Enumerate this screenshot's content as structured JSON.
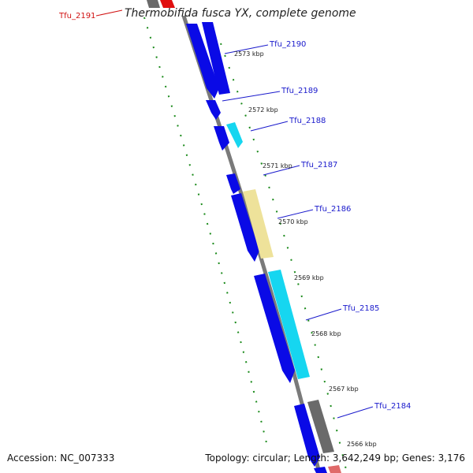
{
  "title": "Thermobifida fusca YX, complete genome",
  "footer": {
    "accession": "Accession: NC_007333",
    "topology": "Topology: circular; Length: 3,642,249 bp; Genes: 3,176"
  },
  "colors": {
    "backbone": "#7a7a7a",
    "gene_blue": "#0a0ae6",
    "gene_cyan": "#16d6f0",
    "gene_yellow": "#eee29a",
    "gene_gray": "#6a6a6a",
    "gene_red": "#e01010",
    "tick_green": "#1a8a1a",
    "label_blue": "#1a1acc",
    "label_red": "#d01010"
  },
  "kbp_ticks": [
    "2573 kbp",
    "2572 kbp",
    "2571 kbp",
    "2570 kbp",
    "2569 kbp",
    "2568 kbp",
    "2567 kbp",
    "2566 kbp"
  ],
  "gene_labels": [
    {
      "text": "Tfu_2191",
      "color": "red"
    },
    {
      "text": "Tfu_2190",
      "color": "blue"
    },
    {
      "text": "Tfu_2189",
      "color": "blue"
    },
    {
      "text": "Tfu_2188",
      "color": "blue"
    },
    {
      "text": "Tfu_2187",
      "color": "blue"
    },
    {
      "text": "Tfu_2186",
      "color": "blue"
    },
    {
      "text": "Tfu_2185",
      "color": "blue"
    },
    {
      "text": "Tfu_2184",
      "color": "blue"
    }
  ]
}
